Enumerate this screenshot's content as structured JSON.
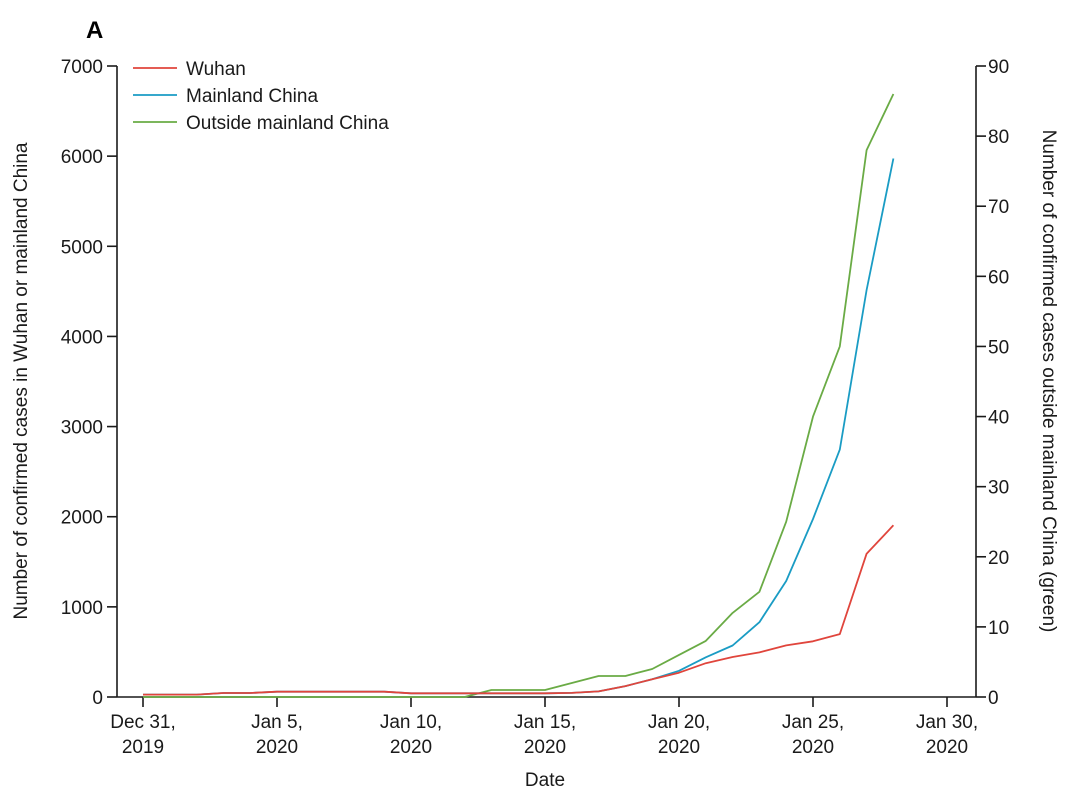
{
  "chart_data": {
    "type": "line",
    "panel_label": "A",
    "xlabel": "Date",
    "ylabel_left": "Number of confirmed cases in Wuhan or mainland China",
    "ylabel_right": "Number of confirmed cases outside mainland China (green)",
    "x_tick_labels": [
      {
        "day": 0,
        "line1": "Dec 31,",
        "line2": "2019"
      },
      {
        "day": 5,
        "line1": "Jan 5,",
        "line2": "2020"
      },
      {
        "day": 10,
        "line1": "Jan 10,",
        "line2": "2020"
      },
      {
        "day": 15,
        "line1": "Jan 15,",
        "line2": "2020"
      },
      {
        "day": 20,
        "line1": "Jan 20,",
        "line2": "2020"
      },
      {
        "day": 25,
        "line1": "Jan 25,",
        "line2": "2020"
      },
      {
        "day": 30,
        "line1": "Jan 30,",
        "line2": "2020"
      }
    ],
    "xlim": [
      0,
      30
    ],
    "ylim_left": [
      0,
      7000
    ],
    "ylim_right": [
      0,
      90
    ],
    "yticks_left": [
      "0",
      "1000",
      "2000",
      "3000",
      "4000",
      "5000",
      "6000",
      "7000"
    ],
    "yticks_right": [
      "0",
      "10",
      "20",
      "30",
      "40",
      "50",
      "60",
      "70",
      "80",
      "90"
    ],
    "legend": {
      "placement": "top-left"
    },
    "series": [
      {
        "name": "Wuhan",
        "color": "#e0453c",
        "axis": "left",
        "x": [
          0,
          1,
          2,
          3,
          4,
          5,
          6,
          7,
          8,
          9,
          10,
          11,
          12,
          13,
          14,
          15,
          16,
          17,
          18,
          19,
          20,
          21,
          22,
          23,
          24,
          25,
          26,
          27,
          28
        ],
        "y": [
          27,
          27,
          27,
          44,
          44,
          59,
          59,
          59,
          59,
          59,
          41,
          41,
          41,
          41,
          41,
          41,
          45,
          62,
          121,
          198,
          270,
          375,
          444,
          495,
          572,
          618,
          698,
          1590,
          1905
        ]
      },
      {
        "name": "Mainland China",
        "color": "#1a9cc4",
        "axis": "left",
        "x": [
          0,
          1,
          2,
          3,
          4,
          5,
          6,
          7,
          8,
          9,
          10,
          11,
          12,
          13,
          14,
          15,
          16,
          17,
          18,
          19,
          20,
          21,
          22,
          23,
          24,
          25,
          26,
          27,
          28
        ],
        "y": [
          27,
          27,
          27,
          44,
          44,
          59,
          59,
          59,
          59,
          59,
          41,
          41,
          41,
          41,
          41,
          41,
          45,
          62,
          121,
          198,
          291,
          440,
          571,
          830,
          1287,
          1975,
          2744,
          4515,
          5974
        ]
      },
      {
        "name": "Outside mainland China",
        "color": "#6aab45",
        "axis": "right",
        "x": [
          0,
          1,
          2,
          3,
          4,
          5,
          6,
          7,
          8,
          9,
          10,
          11,
          12,
          13,
          14,
          15,
          16,
          17,
          18,
          19,
          20,
          21,
          22,
          23,
          24,
          25,
          26,
          27,
          28
        ],
        "y": [
          0,
          0,
          0,
          0,
          0,
          0,
          0,
          0,
          0,
          0,
          0,
          0,
          0,
          1,
          1,
          1,
          2,
          3,
          3,
          4,
          6,
          8,
          12,
          15,
          25,
          40,
          50,
          78,
          86
        ]
      }
    ]
  }
}
